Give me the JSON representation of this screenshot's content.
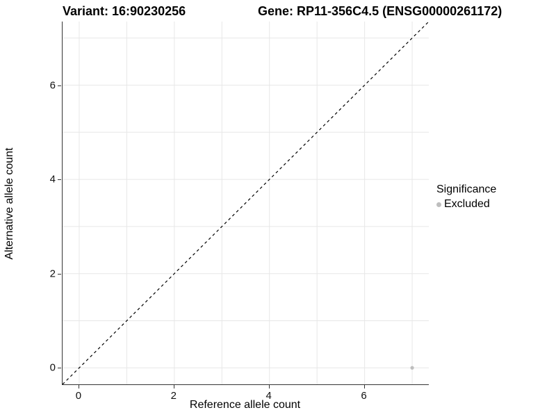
{
  "header": {
    "variant_title": "Variant: 16:90230256",
    "gene_title": "Gene: RP11-356C4.5 (ENSG00000261172)"
  },
  "chart_data": {
    "type": "scatter",
    "title": "Variant: 16:90230256 — Gene: RP11-356C4.5 (ENSG00000261172)",
    "xlabel": "Reference allele count",
    "ylabel": "Alternative allele count",
    "xlim": [
      -0.35,
      7.35
    ],
    "ylim": [
      -0.35,
      7.35
    ],
    "x_ticks": [
      0,
      2,
      4,
      6
    ],
    "y_ticks": [
      0,
      2,
      4,
      6
    ],
    "x_grid_minor": [
      1,
      3,
      5,
      7
    ],
    "y_grid_minor": [
      1,
      3,
      5,
      7
    ],
    "grid": true,
    "reference_line": {
      "type": "identity",
      "slope": 1,
      "intercept": 0,
      "style": "dashed",
      "color": "#000000"
    },
    "series": [
      {
        "name": "Excluded",
        "color": "#bebebe",
        "points": [
          {
            "x": 7,
            "y": 0
          }
        ]
      }
    ],
    "legend": {
      "position": "right",
      "title": "Significance",
      "entries": [
        {
          "label": "Excluded",
          "color": "#bebebe"
        }
      ]
    },
    "colors": {
      "grid": "#e7e7e7",
      "axis_line": "#333333",
      "tick": "#333333",
      "text": "#000000",
      "point": "#bebebe"
    }
  }
}
